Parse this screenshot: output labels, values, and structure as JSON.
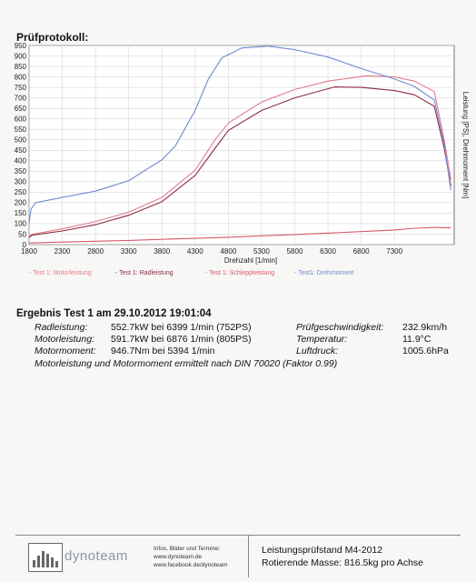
{
  "header": {
    "title": "Prüfprotokoll:"
  },
  "chart_data": {
    "type": "line",
    "xlabel": "Drehzahl [1/min]",
    "ylabel": "Leistung [PS], Drehmoment [Nm]",
    "xlim": [
      1800,
      8200
    ],
    "ylim": [
      0,
      950
    ],
    "xticks": [
      1800,
      2300,
      2800,
      3300,
      3800,
      4300,
      4800,
      5300,
      5800,
      6300,
      6800,
      7300
    ],
    "yticks": [
      0,
      50,
      100,
      150,
      200,
      250,
      300,
      350,
      400,
      450,
      500,
      550,
      600,
      650,
      700,
      750,
      800,
      850,
      900,
      950
    ],
    "grid": true,
    "legend_position": "bottom",
    "series": [
      {
        "name": "- Test 1: Motorleistung",
        "color": "#e07c8c",
        "x": [
          1800,
          1850,
          2300,
          2800,
          3300,
          3800,
          4300,
          4600,
          4800,
          5300,
          5800,
          6300,
          6876,
          7300,
          7600,
          7900,
          8050,
          8150
        ],
        "y": [
          40,
          50,
          75,
          110,
          155,
          225,
          355,
          500,
          580,
          680,
          740,
          780,
          805,
          800,
          780,
          730,
          500,
          310
        ]
      },
      {
        "name": "- Test 1: Radleistung",
        "color": "#8a2c45",
        "x": [
          1800,
          1850,
          2300,
          2800,
          3300,
          3800,
          4300,
          4600,
          4800,
          5300,
          5800,
          6399,
          6800,
          7300,
          7600,
          7900,
          8050,
          8150
        ],
        "y": [
          35,
          45,
          65,
          95,
          140,
          205,
          330,
          460,
          545,
          640,
          700,
          752,
          750,
          735,
          715,
          660,
          460,
          280
        ]
      },
      {
        "name": "- Test 1: Schleppleistung",
        "color": "#d9586c",
        "x": [
          1800,
          2300,
          2800,
          3300,
          3800,
          4300,
          4800,
          5300,
          5800,
          6300,
          6800,
          7300,
          7600,
          7900,
          8150
        ],
        "y": [
          8,
          12,
          16,
          20,
          25,
          30,
          35,
          42,
          48,
          55,
          62,
          70,
          78,
          82,
          80
        ]
      },
      {
        "name": "- Test1: Drehmoment",
        "color": "#6f8ad0",
        "x": [
          1800,
          1830,
          1900,
          2300,
          2800,
          3300,
          3800,
          4000,
          4300,
          4500,
          4700,
          5000,
          5394,
          5800,
          6300,
          6800,
          7300,
          7600,
          7900,
          8050,
          8150
        ],
        "y": [
          100,
          170,
          200,
          225,
          255,
          305,
          405,
          470,
          640,
          790,
          890,
          938,
          947,
          930,
          895,
          840,
          790,
          755,
          690,
          480,
          260
        ]
      }
    ]
  },
  "results": {
    "title": "Ergebnis Test 1 am 29.10.2012 19:01:04",
    "rad_label": "Radleistung:",
    "rad_value": "552.7kW  bei 6399 1/min (752PS)",
    "motor_label": "Motorleistung:",
    "motor_value": "591.7kW  bei 6876 1/min (805PS)",
    "moment_label": "Motormoment:",
    "moment_value": "946.7Nm  bei 5394 1/min",
    "speed_label": "Prüfgeschwindigkeit:",
    "speed_value": "232.9km/h",
    "temp_label": "Temperatur:",
    "temp_value": "11.9°C",
    "pressure_label": "Luftdruck:",
    "pressure_value": "1005.6hPa",
    "note": "Motorleistung und Motormoment ermittelt nach DIN 70020 (Faktor 0.99)"
  },
  "footer": {
    "logo_text": "dynoteam",
    "info_line1": "Infos, Bilder und Termine:",
    "info_line2": "www.dynoteam.de",
    "info_line3": "www.facebook.de/dynoteam",
    "stand": "Leistungsprüfstand M4-2012",
    "mass": "Rotierende Masse: 816.5kg pro Achse"
  }
}
